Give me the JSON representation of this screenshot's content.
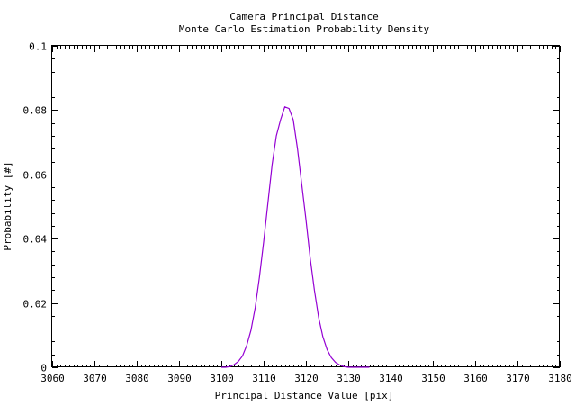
{
  "chart_data": {
    "type": "line",
    "title": "Camera Principal Distance",
    "subtitle": "Monte Carlo Estimation Probability Density",
    "xlabel": "Principal Distance Value [pix]",
    "ylabel": "Probability [#]",
    "xlim": [
      3060,
      3180
    ],
    "ylim": [
      0,
      0.1
    ],
    "xticks": [
      3060,
      3070,
      3080,
      3090,
      3100,
      3110,
      3120,
      3130,
      3140,
      3150,
      3160,
      3170,
      3180
    ],
    "yticks": [
      0,
      0.02,
      0.04,
      0.06,
      0.08,
      0.1
    ],
    "ytick_labels": [
      "0",
      "0.02",
      "0.04",
      "0.06",
      "0.08",
      "0.1"
    ],
    "grid": false,
    "series_color": "#9400d3",
    "series": [
      {
        "x": [
          3100,
          3101,
          3102,
          3103,
          3104,
          3105,
          3106,
          3107,
          3108,
          3109,
          3110,
          3111,
          3112,
          3113,
          3114,
          3115,
          3116,
          3117,
          3118,
          3119,
          3120,
          3121,
          3122,
          3123,
          3124,
          3125,
          3126,
          3127,
          3128,
          3129,
          3130,
          3131,
          3132,
          3133,
          3134,
          3135
        ],
        "values": [
          0,
          0,
          0.0002,
          0.0008,
          0.0018,
          0.0035,
          0.0068,
          0.0115,
          0.0185,
          0.028,
          0.039,
          0.051,
          0.063,
          0.072,
          0.077,
          0.081,
          0.0805,
          0.077,
          0.068,
          0.057,
          0.046,
          0.034,
          0.024,
          0.0155,
          0.0095,
          0.0055,
          0.003,
          0.0015,
          0.0007,
          0.0002,
          0,
          0,
          0,
          0,
          0,
          0
        ]
      }
    ]
  }
}
